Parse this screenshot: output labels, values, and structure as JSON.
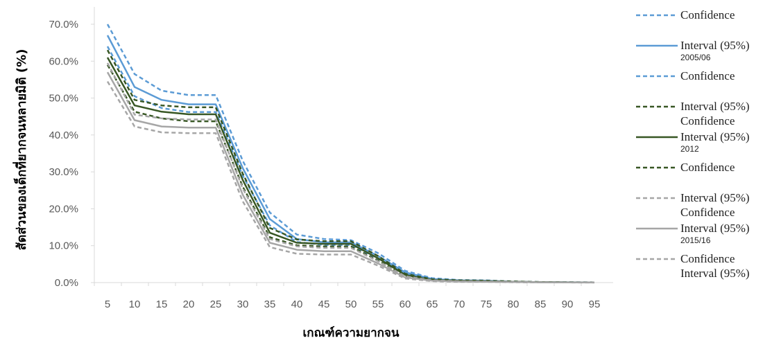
{
  "chart_data": {
    "type": "line",
    "xlabel": "เกณฑ์ความยากจน",
    "ylabel": "สัดส่วนของเด็กที่ยากจนหลายมิติ (%)",
    "ylim": [
      0,
      70
    ],
    "y_ticks": [
      "0.0%",
      "10.0%",
      "20.0%",
      "30.0%",
      "40.0%",
      "50.0%",
      "60.0%",
      "70.0%"
    ],
    "categories": [
      "5",
      "10",
      "15",
      "20",
      "25",
      "30",
      "35",
      "40",
      "45",
      "50",
      "55",
      "60",
      "65",
      "70",
      "75",
      "80",
      "85",
      "90",
      "95"
    ],
    "grid": false,
    "legend_position": "right",
    "colors": {
      "blue": "#5b9bd5",
      "green": "#375623",
      "gray": "#a6a6a6",
      "axis": "#d9d9d9"
    },
    "series": [
      {
        "id": "s2005_upper",
        "style": "dashed",
        "color": "#5b9bd5",
        "values": [
          70.0,
          56.5,
          52.0,
          50.8,
          50.8,
          33.0,
          19.0,
          13.0,
          11.8,
          11.5,
          8.0,
          3.2,
          1.2,
          0.7,
          0.6,
          0.3,
          0.15,
          0.1,
          0.05
        ]
      },
      {
        "id": "s2005",
        "name": "2005/06",
        "style": "solid",
        "color": "#5b9bd5",
        "values": [
          67.0,
          53.0,
          49.5,
          48.3,
          48.3,
          31.0,
          17.2,
          11.8,
          10.9,
          10.9,
          7.2,
          2.8,
          1.0,
          0.6,
          0.5,
          0.25,
          0.12,
          0.08,
          0.04
        ]
      },
      {
        "id": "s2005_lower",
        "style": "dashed",
        "color": "#5b9bd5",
        "values": [
          64.0,
          50.5,
          47.3,
          46.2,
          46.2,
          29.0,
          15.5,
          11.0,
          10.2,
          10.2,
          6.5,
          2.5,
          0.8,
          0.5,
          0.4,
          0.2,
          0.1,
          0.06,
          0.03
        ]
      },
      {
        "id": "s2012_upper",
        "style": "dashed",
        "color": "#375623",
        "values": [
          63.0,
          49.5,
          48.0,
          47.5,
          47.5,
          29.5,
          14.8,
          11.7,
          11.2,
          11.2,
          7.2,
          2.4,
          0.9,
          0.6,
          0.5,
          0.3,
          0.15,
          0.1,
          0.05
        ]
      },
      {
        "id": "s2012",
        "name": "2012",
        "style": "solid",
        "color": "#375623",
        "values": [
          61.0,
          48.0,
          46.3,
          45.6,
          45.6,
          27.8,
          13.5,
          10.8,
          10.5,
          10.5,
          6.6,
          2.1,
          0.7,
          0.5,
          0.4,
          0.25,
          0.12,
          0.08,
          0.04
        ]
      },
      {
        "id": "s2012_lower",
        "style": "dashed",
        "color": "#375623",
        "values": [
          59.0,
          46.3,
          44.5,
          43.7,
          43.7,
          26.0,
          12.3,
          10.1,
          9.8,
          9.8,
          6.0,
          1.8,
          0.6,
          0.4,
          0.3,
          0.2,
          0.1,
          0.06,
          0.03
        ]
      },
      {
        "id": "s2015_upper",
        "style": "dashed",
        "color": "#a6a6a6",
        "values": [
          59.5,
          45.5,
          44.5,
          44.2,
          44.2,
          25.5,
          11.8,
          9.8,
          9.4,
          9.4,
          5.8,
          1.7,
          0.6,
          0.4,
          0.3,
          0.2,
          0.1,
          0.06,
          0.03
        ]
      },
      {
        "id": "s2015",
        "name": "2015/16",
        "style": "solid",
        "color": "#a6a6a6",
        "values": [
          57.0,
          44.0,
          42.3,
          42.0,
          42.0,
          23.8,
          10.8,
          8.9,
          8.5,
          8.5,
          5.2,
          1.4,
          0.5,
          0.3,
          0.25,
          0.15,
          0.08,
          0.05,
          0.02
        ]
      },
      {
        "id": "s2015_lower",
        "style": "dashed",
        "color": "#a6a6a6",
        "values": [
          54.5,
          42.3,
          40.7,
          40.5,
          40.5,
          22.0,
          9.6,
          7.8,
          7.6,
          7.6,
          4.6,
          1.1,
          0.4,
          0.2,
          0.2,
          0.1,
          0.05,
          0.03,
          0.01
        ]
      }
    ],
    "legend": [
      {
        "style": "dashed",
        "color": "#5b9bd5",
        "lines": [
          "Confidence"
        ]
      },
      {
        "style": "solid",
        "color": "#5b9bd5",
        "lines": [
          "Interval (95%)",
          "2005/06"
        ]
      },
      {
        "style": "dashed",
        "color": "#5b9bd5",
        "lines": [
          "Confidence"
        ]
      },
      {
        "style": "dashed",
        "color": "#375623",
        "lines": [
          "Interval (95%)",
          "Confidence"
        ]
      },
      {
        "style": "solid",
        "color": "#375623",
        "lines": [
          "Interval (95%)",
          "2012"
        ]
      },
      {
        "style": "dashed",
        "color": "#375623",
        "lines": [
          "Confidence"
        ]
      },
      {
        "style": "dashed",
        "color": "#a6a6a6",
        "lines": [
          "Interval (95%)",
          "Confidence"
        ]
      },
      {
        "style": "solid",
        "color": "#a6a6a6",
        "lines": [
          "Interval (95%)",
          "2015/16"
        ]
      },
      {
        "style": "dashed",
        "color": "#a6a6a6",
        "lines": [
          "Confidence",
          "Interval (95%)"
        ]
      }
    ]
  }
}
